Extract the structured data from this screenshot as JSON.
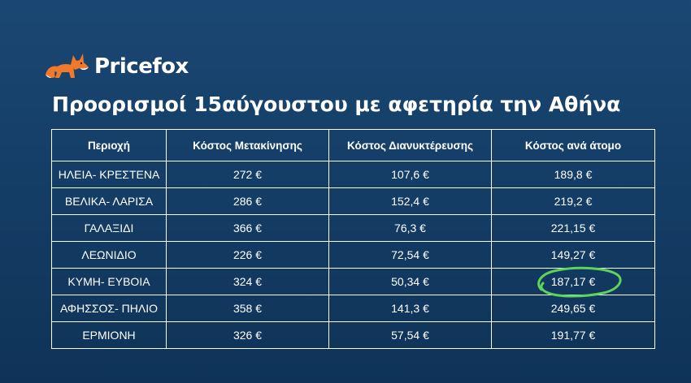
{
  "brand": {
    "name": "Pricefox",
    "logo_icon": "fox-icon",
    "accent": "#f07a2a"
  },
  "title": "Προορισμοί 15αύγουστου με αφετηρία την Αθήνα",
  "table": {
    "headers": [
      "Περιοχή",
      "Κόστος Μετακίνησης",
      "Κόστος Διανυκτέρευσης",
      "Κόστος ανά άτομο"
    ],
    "rows": [
      {
        "region": "ΗΛΕΙΑ- ΚΡΕΣΤΕΝΑ",
        "travel": "272 €",
        "stay": "107,6 €",
        "per_person": "189,8 €"
      },
      {
        "region": "ΒΕΛΙΚΑ- ΛΑΡΙΣΑ",
        "travel": "286 €",
        "stay": "152,4 €",
        "per_person": "219,2 €"
      },
      {
        "region": "ΓΑΛΑΞΙΔΙ",
        "travel": "366 €",
        "stay": "76,3 €",
        "per_person": "221,15 €"
      },
      {
        "region": "ΛΕΩΝΙΔΙΟ",
        "travel": "226 €",
        "stay": "72,54 €",
        "per_person": "149,27 €"
      },
      {
        "region": "ΚΥΜΗ- ΕΥΒΟΙΑ",
        "travel": "324 €",
        "stay": "50,34 €",
        "per_person": "187,17 €"
      },
      {
        "region": "ΑΦΗΣΣΟΣ- ΠΗΛΙΟ",
        "travel": "358 €",
        "stay": "141,3 €",
        "per_person": "249,65 €"
      },
      {
        "region": "ΕΡΜΙΟΝΗ",
        "travel": "326 €",
        "stay": "57,54 €",
        "per_person": "191,77 €"
      }
    ],
    "highlight_color": "#5fd35a"
  }
}
